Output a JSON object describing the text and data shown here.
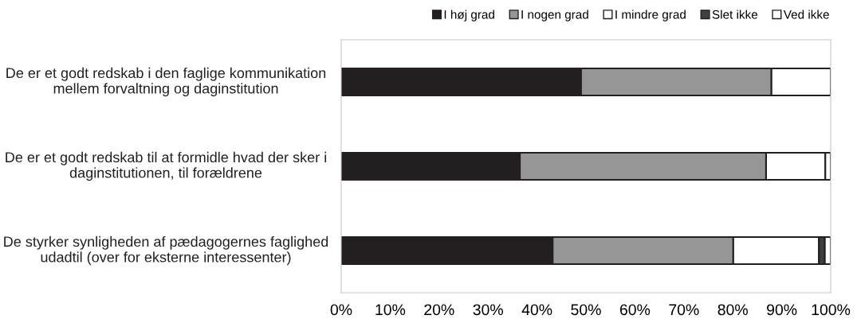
{
  "chart_data": {
    "type": "bar",
    "orientation": "horizontal",
    "stacked": true,
    "legend": "top",
    "grid": false,
    "categories": [
      "De er et godt redskab i den faglige kommunikation mellem forvaltning og daginstitution",
      "De er et godt redskab til at formidle hvad der sker i daginstitutionen, til forældrene",
      "De styrker synligheden af pædagogernes faglighed udadtil (over for eksterne interessenter)"
    ],
    "series": [
      {
        "name": "I høj grad",
        "color": "#231f20",
        "values": [
          49.0,
          36.5,
          43.2
        ]
      },
      {
        "name": "I nogen grad",
        "color": "#969696",
        "values": [
          38.9,
          50.3,
          36.9
        ]
      },
      {
        "name": "I mindre grad",
        "color": "#ffffff",
        "values": [
          12.1,
          12.1,
          17.5
        ]
      },
      {
        "name": "Slet ikke",
        "color": "#404040",
        "values": [
          0,
          0,
          1.2
        ]
      },
      {
        "name": "Ved ikke",
        "color": "#ffffff",
        "values": [
          0,
          1.1,
          1.2
        ]
      }
    ],
    "xlim": [
      0,
      100
    ],
    "xticks": [
      {
        "value": 0,
        "label": "0%"
      },
      {
        "value": 10,
        "label": "10%"
      },
      {
        "value": 20,
        "label": "20%"
      },
      {
        "value": 30,
        "label": "30%"
      },
      {
        "value": 40,
        "label": "40%"
      },
      {
        "value": 50,
        "label": "50%"
      },
      {
        "value": 60,
        "label": "60%"
      },
      {
        "value": 70,
        "label": "70%"
      },
      {
        "value": 80,
        "label": "80%"
      },
      {
        "value": 90,
        "label": "90%"
      },
      {
        "value": 100,
        "label": "100%"
      }
    ]
  }
}
